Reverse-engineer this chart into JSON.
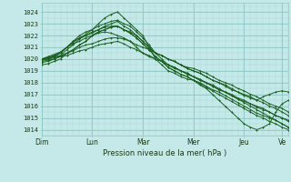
{
  "background_color": "#c5e8e8",
  "grid_color_major": "#8fc8c8",
  "grid_color_minor": "#a8d8d8",
  "line_color": "#1a6020",
  "ylabel_text": "Pression niveau de la mer( hPa )",
  "x_labels": [
    "Dim",
    "Lun",
    "Mar",
    "Mer",
    "Jeu",
    "Ve"
  ],
  "x_ticks_pos": [
    0,
    24,
    48,
    72,
    96,
    114
  ],
  "ylim": [
    1013.5,
    1024.8
  ],
  "y_ticks": [
    1014,
    1015,
    1016,
    1017,
    1018,
    1019,
    1020,
    1021,
    1022,
    1023,
    1024
  ],
  "x_vals": [
    0,
    3,
    6,
    9,
    12,
    15,
    18,
    21,
    24,
    27,
    30,
    33,
    36,
    39,
    42,
    45,
    48,
    51,
    54,
    57,
    60,
    63,
    66,
    69,
    72,
    75,
    78,
    81,
    84,
    87,
    90,
    93,
    96,
    99,
    102,
    105,
    108,
    111,
    114,
    117
  ],
  "series": [
    [
      1020.0,
      1020.1,
      1020.3,
      1020.5,
      1021.0,
      1021.5,
      1022.0,
      1022.3,
      1022.5,
      1023.0,
      1023.5,
      1023.8,
      1024.0,
      1023.5,
      1023.0,
      1022.5,
      1022.0,
      1021.0,
      1020.0,
      1019.5,
      1019.0,
      1018.8,
      1018.5,
      1018.3,
      1018.2,
      1017.8,
      1017.5,
      1017.0,
      1016.5,
      1016.0,
      1015.5,
      1015.0,
      1014.5,
      1014.2,
      1014.0,
      1014.2,
      1014.5,
      1015.5,
      1016.2,
      1016.5
    ],
    [
      1020.0,
      1020.2,
      1020.4,
      1020.6,
      1021.0,
      1021.5,
      1021.8,
      1022.0,
      1022.2,
      1022.5,
      1022.8,
      1023.0,
      1023.2,
      1022.8,
      1022.5,
      1022.0,
      1021.5,
      1021.0,
      1020.5,
      1020.3,
      1020.0,
      1019.8,
      1019.5,
      1019.2,
      1019.0,
      1018.8,
      1018.5,
      1018.2,
      1018.0,
      1017.8,
      1017.5,
      1017.2,
      1017.0,
      1016.8,
      1016.5,
      1016.8,
      1017.0,
      1017.2,
      1017.3,
      1017.2
    ],
    [
      1020.0,
      1020.1,
      1020.2,
      1020.3,
      1020.5,
      1020.7,
      1021.0,
      1021.2,
      1021.3,
      1021.5,
      1021.7,
      1021.8,
      1021.8,
      1021.7,
      1021.5,
      1021.2,
      1021.0,
      1020.8,
      1020.5,
      1020.3,
      1020.0,
      1019.8,
      1019.5,
      1019.3,
      1019.2,
      1019.0,
      1018.8,
      1018.5,
      1018.2,
      1018.0,
      1017.8,
      1017.5,
      1017.3,
      1017.0,
      1016.8,
      1016.5,
      1016.2,
      1016.0,
      1015.8,
      1015.5
    ],
    [
      1020.0,
      1020.0,
      1020.1,
      1020.2,
      1020.3,
      1020.5,
      1020.7,
      1020.8,
      1021.0,
      1021.2,
      1021.3,
      1021.4,
      1021.5,
      1021.3,
      1021.0,
      1020.8,
      1020.5,
      1020.3,
      1020.0,
      1019.8,
      1019.5,
      1019.3,
      1019.0,
      1018.8,
      1018.5,
      1018.3,
      1018.0,
      1017.8,
      1017.5,
      1017.2,
      1017.0,
      1016.7,
      1016.5,
      1016.2,
      1015.9,
      1015.7,
      1015.5,
      1015.2,
      1015.0,
      1014.8
    ],
    [
      1019.8,
      1019.9,
      1020.0,
      1020.2,
      1020.5,
      1020.8,
      1021.2,
      1021.5,
      1022.0,
      1022.2,
      1022.3,
      1022.2,
      1022.0,
      1021.8,
      1021.5,
      1021.0,
      1020.5,
      1020.2,
      1020.0,
      1019.8,
      1019.5,
      1019.3,
      1019.0,
      1018.8,
      1018.5,
      1018.2,
      1018.0,
      1017.7,
      1017.4,
      1017.2,
      1016.9,
      1016.6,
      1016.4,
      1016.2,
      1016.0,
      1015.8,
      1015.5,
      1015.2,
      1015.0,
      1014.7
    ],
    [
      1019.9,
      1020.0,
      1020.2,
      1020.5,
      1021.0,
      1021.3,
      1021.5,
      1021.8,
      1022.0,
      1022.3,
      1022.5,
      1022.7,
      1022.8,
      1022.5,
      1022.3,
      1022.0,
      1021.5,
      1021.0,
      1020.5,
      1020.3,
      1020.0,
      1019.8,
      1019.5,
      1019.2,
      1019.0,
      1018.8,
      1018.5,
      1018.2,
      1018.0,
      1017.7,
      1017.4,
      1017.2,
      1016.9,
      1016.7,
      1016.5,
      1016.3,
      1016.0,
      1015.8,
      1015.5,
      1015.2
    ],
    [
      1020.0,
      1020.1,
      1020.3,
      1020.6,
      1021.0,
      1021.4,
      1021.8,
      1022.1,
      1022.5,
      1022.8,
      1023.0,
      1023.2,
      1023.3,
      1023.0,
      1022.8,
      1022.3,
      1021.8,
      1021.2,
      1020.5,
      1020.0,
      1019.5,
      1019.2,
      1019.0,
      1018.7,
      1018.5,
      1018.2,
      1018.0,
      1017.7,
      1017.4,
      1017.2,
      1016.9,
      1016.6,
      1016.3,
      1016.0,
      1015.7,
      1015.4,
      1015.1,
      1014.8,
      1014.5,
      1014.2
    ],
    [
      1019.7,
      1019.8,
      1020.0,
      1020.3,
      1020.8,
      1021.2,
      1021.7,
      1022.0,
      1022.3,
      1022.5,
      1022.7,
      1022.8,
      1022.8,
      1022.5,
      1022.2,
      1021.8,
      1021.3,
      1020.8,
      1020.2,
      1019.8,
      1019.3,
      1019.0,
      1018.7,
      1018.5,
      1018.2,
      1018.0,
      1017.7,
      1017.4,
      1017.2,
      1016.9,
      1016.6,
      1016.3,
      1016.0,
      1015.7,
      1015.4,
      1015.2,
      1015.0,
      1014.8,
      1014.5,
      1014.2
    ],
    [
      1019.5,
      1019.6,
      1019.8,
      1020.0,
      1020.5,
      1020.8,
      1021.2,
      1021.5,
      1022.0,
      1022.3,
      1022.5,
      1022.7,
      1022.8,
      1022.5,
      1022.2,
      1021.8,
      1021.3,
      1020.8,
      1020.2,
      1019.8,
      1019.3,
      1019.0,
      1018.7,
      1018.5,
      1018.2,
      1017.9,
      1017.6,
      1017.3,
      1017.0,
      1016.7,
      1016.4,
      1016.1,
      1015.8,
      1015.5,
      1015.2,
      1015.0,
      1014.7,
      1014.5,
      1014.2,
      1014.0
    ]
  ]
}
